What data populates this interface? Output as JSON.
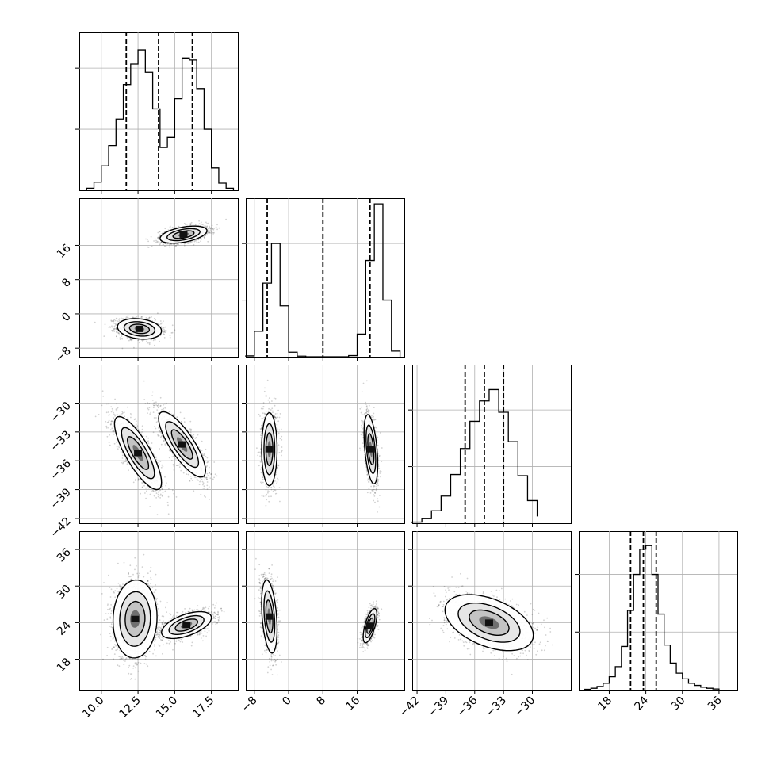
{
  "chart_data": {
    "type": "corner",
    "grid": true,
    "parameters": [
      {
        "name": "",
        "range": [
          8.5,
          19.3
        ],
        "ticks": [
          10.0,
          12.5,
          15.0,
          17.5
        ],
        "tick_labels": [
          "10.0",
          "12.5",
          "15.0",
          "17.5"
        ],
        "hist_ticks": [
          300,
          600
        ],
        "hist_ymax": 780,
        "quantiles": [
          11.7,
          13.9,
          16.2
        ],
        "hist": {
          "edges": [
            9.0,
            9.5,
            10.0,
            10.5,
            11.0,
            11.5,
            12.0,
            12.5,
            13.0,
            13.5,
            14.0,
            14.5,
            15.0,
            15.5,
            16.0,
            16.5,
            17.0,
            17.5,
            18.0,
            18.5,
            19.0
          ],
          "counts": [
            10,
            40,
            120,
            220,
            350,
            520,
            620,
            690,
            580,
            400,
            210,
            260,
            450,
            650,
            640,
            500,
            300,
            110,
            35,
            10
          ]
        }
      },
      {
        "name": "",
        "range": [
          -10.0,
          27.0
        ],
        "ticks": [
          -8,
          0,
          8,
          16
        ],
        "tick_labels": [
          "−8",
          "0",
          "8",
          "16"
        ],
        "hist_ticks": [
          1000,
          2000
        ],
        "hist_ymax": 2800,
        "quantiles": [
          -5.0,
          8.0,
          19.0
        ],
        "hist": {
          "edges": [
            -10,
            -8,
            -6,
            -4,
            -2,
            0,
            2,
            4,
            6,
            8,
            10,
            12,
            14,
            16,
            18,
            20,
            22,
            24,
            26
          ],
          "counts": [
            15,
            450,
            1300,
            2000,
            900,
            80,
            10,
            0,
            0,
            0,
            0,
            0,
            20,
            400,
            1700,
            2700,
            1000,
            100
          ]
        }
      },
      {
        "name": "",
        "range": [
          -42.5,
          -26.0
        ],
        "ticks": [
          -42,
          -39,
          -36,
          -33,
          -30
        ],
        "tick_labels": [
          "−42",
          "−39",
          "−36",
          "−33",
          "−30"
        ],
        "hist_ticks": [
          500,
          1000
        ],
        "hist_ymax": 1400,
        "quantiles": [
          -37.0,
          -35.0,
          -33.0
        ],
        "hist": {
          "edges": [
            -42.5,
            -41.5,
            -40.5,
            -39.5,
            -38.5,
            -37.5,
            -36.5,
            -35.5,
            -34.5,
            -33.5,
            -32.5,
            -31.5,
            -30.5,
            -29.5
          ],
          "counts": [
            10,
            40,
            110,
            240,
            430,
            660,
            900,
            1080,
            1180,
            980,
            720,
            420,
            200,
            60
          ]
        }
      },
      {
        "name": "",
        "range": [
          13.0,
          39.0
        ],
        "ticks": [
          18,
          24,
          30,
          36
        ],
        "tick_labels": [
          "18",
          "24",
          "30",
          "36"
        ],
        "hist_ticks": [
          800,
          1600
        ],
        "hist_ymax": 2200,
        "quantiles": [
          21.5,
          23.6,
          25.7
        ],
        "hist": {
          "edges": [
            14.0,
            15.0,
            16.0,
            17.0,
            18.0,
            19.0,
            20.0,
            21.0,
            22.0,
            23.0,
            24.0,
            25.0,
            26.0,
            27.0,
            28.0,
            29.0,
            30.0,
            31.0,
            32.0,
            33.0,
            34.0,
            35.0,
            36.0
          ],
          "counts": [
            5,
            20,
            45,
            90,
            180,
            320,
            600,
            1100,
            1600,
            1950,
            2000,
            1600,
            1050,
            620,
            370,
            230,
            150,
            90,
            60,
            35,
            20,
            10
          ]
        }
      }
    ],
    "pairs": [
      {
        "x": 0,
        "y": 1,
        "modes": [
          {
            "mean": [
              12.6,
              -3.5
            ],
            "sd": [
              0.75,
              1.2
            ],
            "rho": -0.2,
            "weight": 1
          },
          {
            "mean": [
              15.6,
              18.5
            ],
            "sd": [
              0.8,
              1.0
            ],
            "rho": 0.45,
            "weight": 1
          }
        ]
      },
      {
        "x": 0,
        "y": 2,
        "modes": [
          {
            "mean": [
              12.5,
              -35.2
            ],
            "sd": [
              0.8,
              1.9
            ],
            "rho": -0.8,
            "weight": 1
          },
          {
            "mean": [
              15.5,
              -34.3
            ],
            "sd": [
              0.8,
              1.7
            ],
            "rho": -0.8,
            "weight": 1
          }
        ]
      },
      {
        "x": 1,
        "y": 2,
        "modes": [
          {
            "mean": [
              -4.5,
              -34.8
            ],
            "sd": [
              0.9,
              1.9
            ],
            "rho": 0.0,
            "weight": 1
          },
          {
            "mean": [
              19.2,
              -34.8
            ],
            "sd": [
              0.8,
              1.8
            ],
            "rho": -0.45,
            "weight": 1
          }
        ]
      },
      {
        "x": 0,
        "y": 3,
        "modes": [
          {
            "mean": [
              12.3,
              24.6
            ],
            "sd": [
              0.75,
              3.2
            ],
            "rho": 0.05,
            "weight": 1
          },
          {
            "mean": [
              15.8,
              23.6
            ],
            "sd": [
              0.85,
              1.1
            ],
            "rho": 0.55,
            "weight": 1
          }
        ]
      },
      {
        "x": 1,
        "y": 3,
        "modes": [
          {
            "mean": [
              -4.5,
              25.0
            ],
            "sd": [
              0.9,
              3.0
            ],
            "rho": -0.35,
            "weight": 1
          },
          {
            "mean": [
              19.0,
              23.5
            ],
            "sd": [
              0.8,
              1.4
            ],
            "rho": 0.65,
            "weight": 1
          }
        ]
      },
      {
        "x": 2,
        "y": 3,
        "modes": [
          {
            "mean": [
              -34.5,
              24.0
            ],
            "sd": [
              2.3,
              2.3
            ],
            "rho": -0.45,
            "weight": 1
          }
        ]
      }
    ]
  }
}
